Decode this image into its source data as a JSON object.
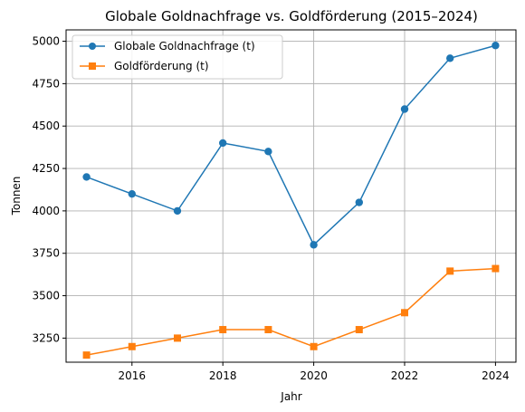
{
  "chart_data": {
    "type": "line",
    "title": "Globale Goldnachfrage vs. Goldförderung (2015–2024)",
    "xlabel": "Jahr",
    "ylabel": "Tonnen",
    "x": [
      2015,
      2016,
      2017,
      2018,
      2019,
      2020,
      2021,
      2022,
      2023,
      2024
    ],
    "xlim": [
      2014.55,
      2024.45
    ],
    "ylim": [
      3108,
      5067
    ],
    "xticks": [
      2016,
      2018,
      2020,
      2022,
      2024
    ],
    "yticks": [
      3250,
      3500,
      3750,
      4000,
      4250,
      4500,
      4750,
      5000
    ],
    "grid": true,
    "legend_position": "top-left",
    "series": [
      {
        "name": "Globale Goldnachfrage (t)",
        "values": [
          4200,
          4100,
          4000,
          4400,
          4350,
          3800,
          4050,
          4600,
          4900,
          4975
        ],
        "color": "#1f77b4",
        "marker": "circle"
      },
      {
        "name": "Goldförderung (t)",
        "values": [
          3150,
          3200,
          3250,
          3300,
          3300,
          3200,
          3300,
          3400,
          3645,
          3660
        ],
        "color": "#ff7f0e",
        "marker": "square"
      }
    ]
  }
}
